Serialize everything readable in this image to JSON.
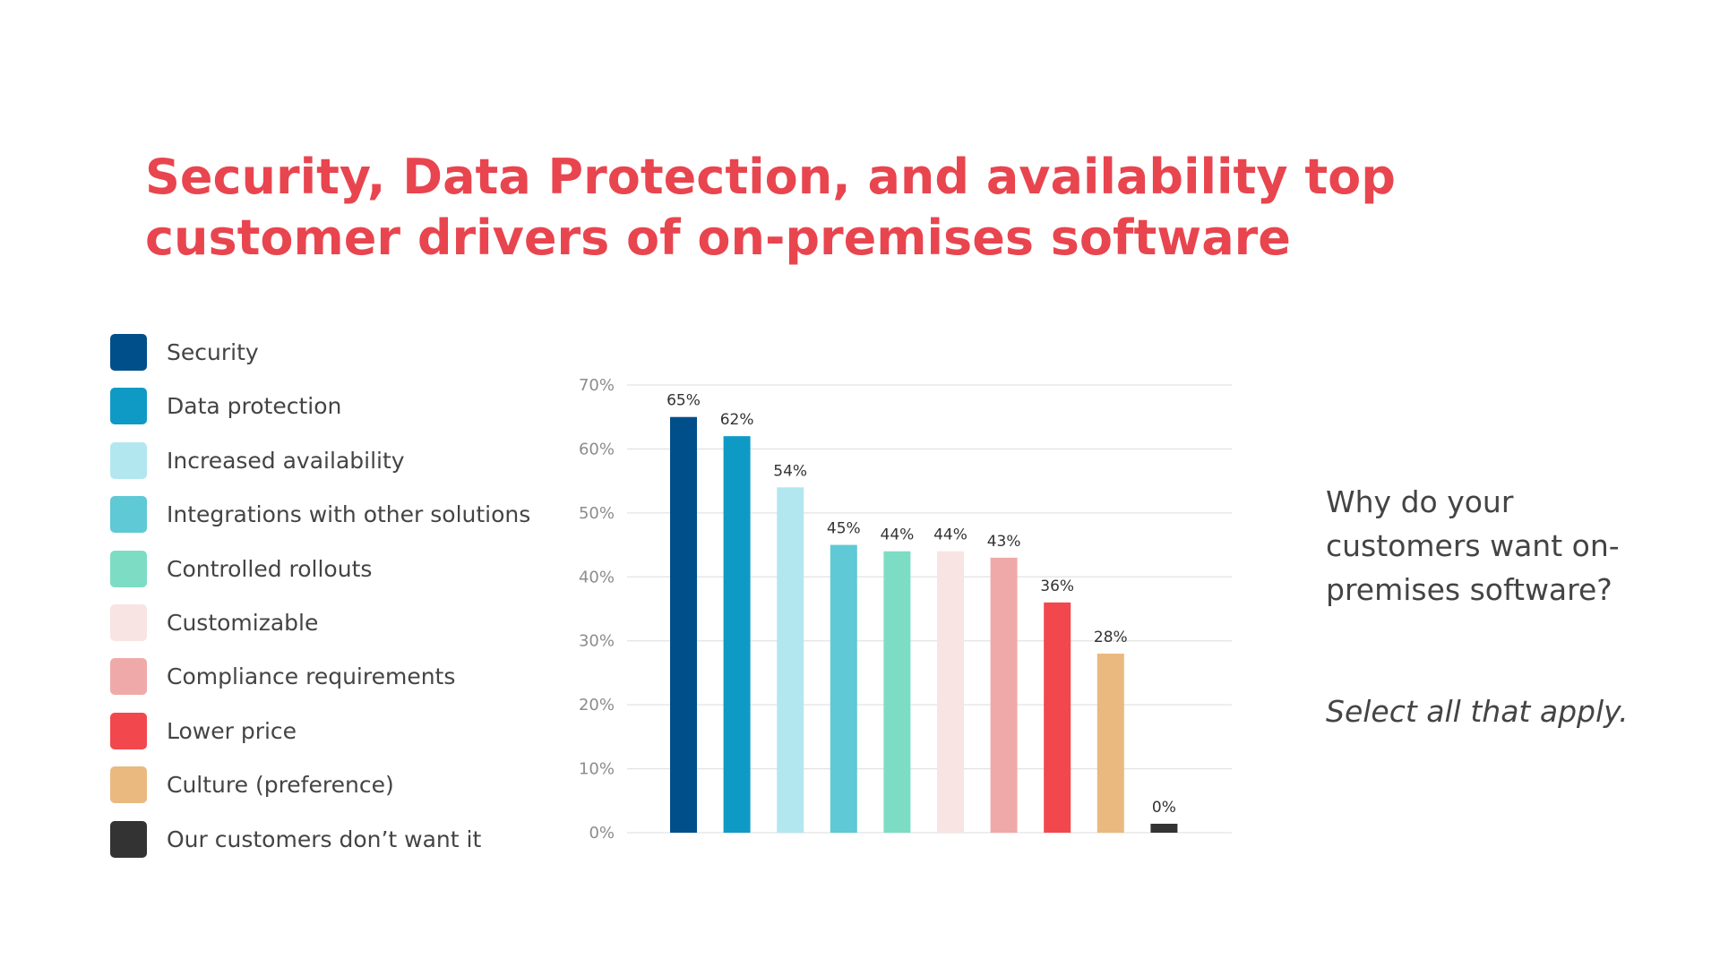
{
  "title": "Security, Data Protection, and availability top customer drivers of on-premises software",
  "question": "Why do your customers want on-premises software?",
  "note": "Select all that apply.",
  "legend": [
    {
      "label": "Security",
      "color": "#004f8a"
    },
    {
      "label": "Data protection",
      "color": "#0f9ac5"
    },
    {
      "label": "Increased availability",
      "color": "#b3e7ef"
    },
    {
      "label": "Integrations with other solutions",
      "color": "#5fc9d5"
    },
    {
      "label": "Controlled rollouts",
      "color": "#7dddc4"
    },
    {
      "label": "Customizable",
      "color": "#f8e4e3"
    },
    {
      "label": "Compliance requirements",
      "color": "#f0a9a9"
    },
    {
      "label": "Lower price",
      "color": "#f2474c"
    },
    {
      "label": "Culture (preference)",
      "color": "#e9b97f"
    },
    {
      "label": "Our customers don’t want it",
      "color": "#333333"
    }
  ],
  "chart_data": {
    "type": "bar",
    "categories": [
      "Security",
      "Data protection",
      "Increased availability",
      "Integrations with other solutions",
      "Controlled rollouts",
      "Customizable",
      "Compliance requirements",
      "Lower price",
      "Culture (preference)",
      "Our customers don’t want it"
    ],
    "values": [
      65,
      62,
      54,
      45,
      44,
      44,
      43,
      36,
      28,
      0
    ],
    "value_labels": [
      "65%",
      "62%",
      "54%",
      "45%",
      "44%",
      "44%",
      "43%",
      "36%",
      "28%",
      "0%"
    ],
    "colors": [
      "#004f8a",
      "#0f9ac5",
      "#b3e7ef",
      "#5fc9d5",
      "#7dddc4",
      "#f8e4e3",
      "#f0a9a9",
      "#f2474c",
      "#e9b97f",
      "#333333"
    ],
    "ylim": [
      0,
      70
    ],
    "yticks": [
      0,
      10,
      20,
      30,
      40,
      50,
      60,
      70
    ],
    "ytick_labels": [
      "0%",
      "10%",
      "20%",
      "30%",
      "40%",
      "50%",
      "60%",
      "70%"
    ],
    "grid": true,
    "legend_position": "left",
    "title": "",
    "xlabel": "",
    "ylabel": ""
  }
}
